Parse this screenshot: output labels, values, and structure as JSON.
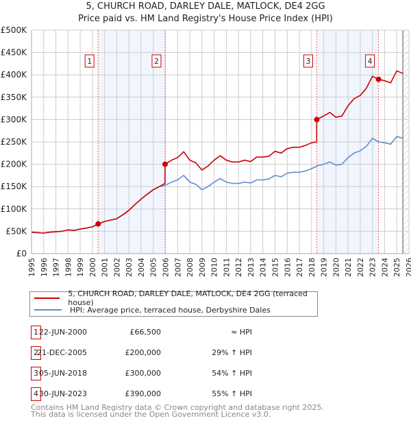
{
  "chart_data": {
    "type": "line",
    "title": "5, CHURCH ROAD, DARLEY DALE, MATLOCK, DE4 2GG",
    "subtitle": "Price paid vs. HM Land Registry's House Price Index (HPI)",
    "xlim": [
      1995,
      2026
    ],
    "ylim": [
      0,
      500000
    ],
    "x_ticks": [
      "1995",
      "1996",
      "1997",
      "1998",
      "1999",
      "2000",
      "2001",
      "2002",
      "2003",
      "2004",
      "2005",
      "2006",
      "2007",
      "2008",
      "2009",
      "2010",
      "2011",
      "2012",
      "2013",
      "2014",
      "2015",
      "2016",
      "2017",
      "2018",
      "2019",
      "2020",
      "2021",
      "2022",
      "2023",
      "2024",
      "2025",
      "2026"
    ],
    "y_ticks": [
      {
        "v": 0,
        "label": "£0"
      },
      {
        "v": 50000,
        "label": "£50K"
      },
      {
        "v": 100000,
        "label": "£100K"
      },
      {
        "v": 150000,
        "label": "£150K"
      },
      {
        "v": 200000,
        "label": "£200K"
      },
      {
        "v": 250000,
        "label": "£250K"
      },
      {
        "v": 300000,
        "label": "£300K"
      },
      {
        "v": 350000,
        "label": "£350K"
      },
      {
        "v": 400000,
        "label": "£400K"
      },
      {
        "v": 450000,
        "label": "£450K"
      },
      {
        "v": 500000,
        "label": "£500K"
      }
    ],
    "grid": true,
    "series": [
      {
        "name": "5, CHURCH ROAD, DARLEY DALE, MATLOCK, DE4 2GG (terraced house)",
        "color": "#cc0000",
        "x": [
          1995,
          1995.5,
          1996,
          1996.5,
          1997,
          1997.5,
          1998,
          1998.5,
          1999,
          1999.5,
          2000,
          2000.47,
          2001,
          2001.5,
          2002,
          2002.5,
          2003,
          2003.5,
          2004,
          2004.5,
          2005,
          2005.5,
          2005.96,
          2005.97,
          2006.5,
          2007,
          2007.5,
          2008,
          2008.5,
          2009,
          2009.5,
          2010,
          2010.5,
          2011,
          2011.5,
          2012,
          2012.5,
          2013,
          2013.5,
          2014,
          2014.5,
          2015,
          2015.5,
          2016,
          2016.5,
          2017,
          2017.5,
          2018,
          2018.42,
          2018.43,
          2019,
          2019.5,
          2020,
          2020.5,
          2021,
          2021.5,
          2022,
          2022.5,
          2023,
          2023.5,
          2024,
          2024.5,
          2025,
          2025.5
        ],
        "y": [
          48000,
          47000,
          46000,
          48000,
          49000,
          50000,
          53000,
          52000,
          55000,
          57000,
          60000,
          66500,
          72000,
          75000,
          78000,
          87000,
          97000,
          110000,
          122000,
          133000,
          143000,
          150000,
          157000,
          200000,
          209000,
          215000,
          228000,
          209000,
          203000,
          187000,
          196000,
          209000,
          219000,
          209000,
          205000,
          205000,
          209000,
          206000,
          216000,
          216000,
          218000,
          229000,
          225000,
          235000,
          238000,
          238000,
          242000,
          248000,
          250000,
          300000,
          308000,
          316000,
          305000,
          308000,
          331000,
          347000,
          354000,
          370000,
          397000,
          390000,
          387000,
          382000,
          409000,
          403000
        ]
      },
      {
        "name": "HPI: Average price, terraced house, Derbyshire Dales",
        "color": "#5b8fd1",
        "x": [
          1995,
          1995.5,
          1996,
          1996.5,
          1997,
          1997.5,
          1998,
          1998.5,
          1999,
          1999.5,
          2000,
          2000.5,
          2001,
          2001.5,
          2002,
          2002.5,
          2003,
          2003.5,
          2004,
          2004.5,
          2005,
          2005.5,
          2006,
          2006.5,
          2007,
          2007.5,
          2008,
          2008.5,
          2009,
          2009.5,
          2010,
          2010.5,
          2011,
          2011.5,
          2012,
          2012.5,
          2013,
          2013.5,
          2014,
          2014.5,
          2015,
          2015.5,
          2016,
          2016.5,
          2017,
          2017.5,
          2018,
          2018.5,
          2019,
          2019.5,
          2020,
          2020.5,
          2021,
          2021.5,
          2022,
          2022.5,
          2023,
          2023.5,
          2024,
          2024.5,
          2025,
          2025.5
        ],
        "y": [
          48000,
          47000,
          46000,
          48000,
          49000,
          50000,
          53000,
          52000,
          55000,
          57000,
          60000,
          66000,
          72000,
          75000,
          78000,
          87000,
          97000,
          110000,
          122000,
          133000,
          143000,
          150000,
          153000,
          160000,
          165000,
          175000,
          160000,
          155000,
          143000,
          150000,
          160000,
          168000,
          160000,
          157000,
          157000,
          160000,
          158000,
          165000,
          165000,
          167000,
          175000,
          172000,
          180000,
          182000,
          182000,
          185000,
          190000,
          197000,
          200000,
          205000,
          198000,
          200000,
          215000,
          225000,
          230000,
          240000,
          258000,
          250000,
          248000,
          245000,
          262000,
          258000
        ]
      }
    ],
    "sales": [
      {
        "n": "1",
        "x": 2000.47,
        "y": 66500,
        "date": "22-JUN-2000",
        "price": "£66,500",
        "hpi": "≈ HPI"
      },
      {
        "n": "2",
        "x": 2005.97,
        "y": 200000,
        "date": "21-DEC-2005",
        "price": "£200,000",
        "hpi": "29% ↑ HPI"
      },
      {
        "n": "3",
        "x": 2018.43,
        "y": 300000,
        "date": "05-JUN-2018",
        "price": "£300,000",
        "hpi": "54% ↑ HPI"
      },
      {
        "n": "4",
        "x": 2023.5,
        "y": 390000,
        "date": "30-JUN-2023",
        "price": "£390,000",
        "hpi": "55% ↑ HPI"
      }
    ],
    "shaded_ranges": [
      [
        2000.47,
        2005.97
      ],
      [
        2018.43,
        2023.5
      ]
    ],
    "forecast_from": 2025.5,
    "legend_placement": "below"
  },
  "footer": {
    "line1": "Contains HM Land Registry data © Crown copyright and database right 2025.",
    "line2": "This data is licensed under the Open Government Licence v3.0."
  }
}
